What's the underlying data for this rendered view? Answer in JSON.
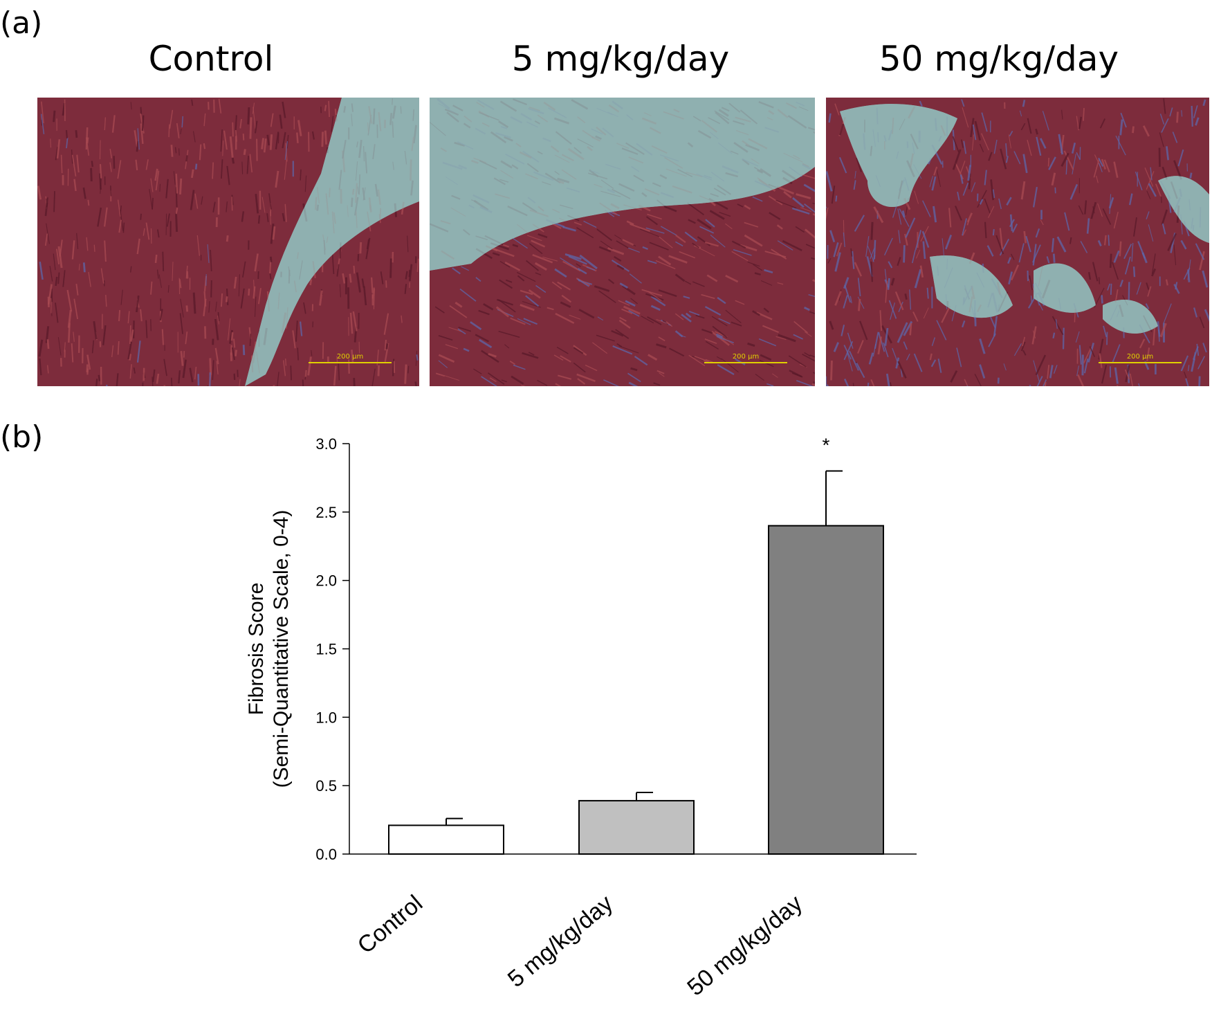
{
  "panel_a": {
    "tag": "(a)",
    "columns": [
      {
        "title": "Control",
        "scale_bar": "200 µm",
        "blue_fraction": 0.05
      },
      {
        "title": "5 mg/kg/day",
        "scale_bar": "200 µm",
        "blue_fraction": 0.25
      },
      {
        "title": "50 mg/kg/day",
        "scale_bar": "200 µm",
        "blue_fraction": 0.6
      }
    ],
    "colors": {
      "tissue": "#7d2c3c",
      "tissue_dark": "#5a1a2a",
      "fibrosis": "#5d66a8",
      "background": "#8fb0b0"
    }
  },
  "panel_b": {
    "tag": "(b)"
  },
  "chart_data": {
    "type": "bar",
    "categories": [
      "Control",
      "5 mg/kg/day",
      "50 mg/kg/day"
    ],
    "values": [
      0.21,
      0.39,
      2.4
    ],
    "errors": [
      0.05,
      0.06,
      0.4
    ],
    "significance": [
      "",
      "",
      "*"
    ],
    "colors": [
      "#ffffff",
      "#c0c0c0",
      "#808080"
    ],
    "ylabel_line1": "Fibrosis Score",
    "ylabel_line2": "(Semi-Quantitative Scale, 0-4)",
    "ylim": [
      0,
      3.0
    ],
    "yticks": [
      "0.0",
      "0.5",
      "1.0",
      "1.5",
      "2.0",
      "2.5",
      "3.0"
    ],
    "grid": false
  }
}
